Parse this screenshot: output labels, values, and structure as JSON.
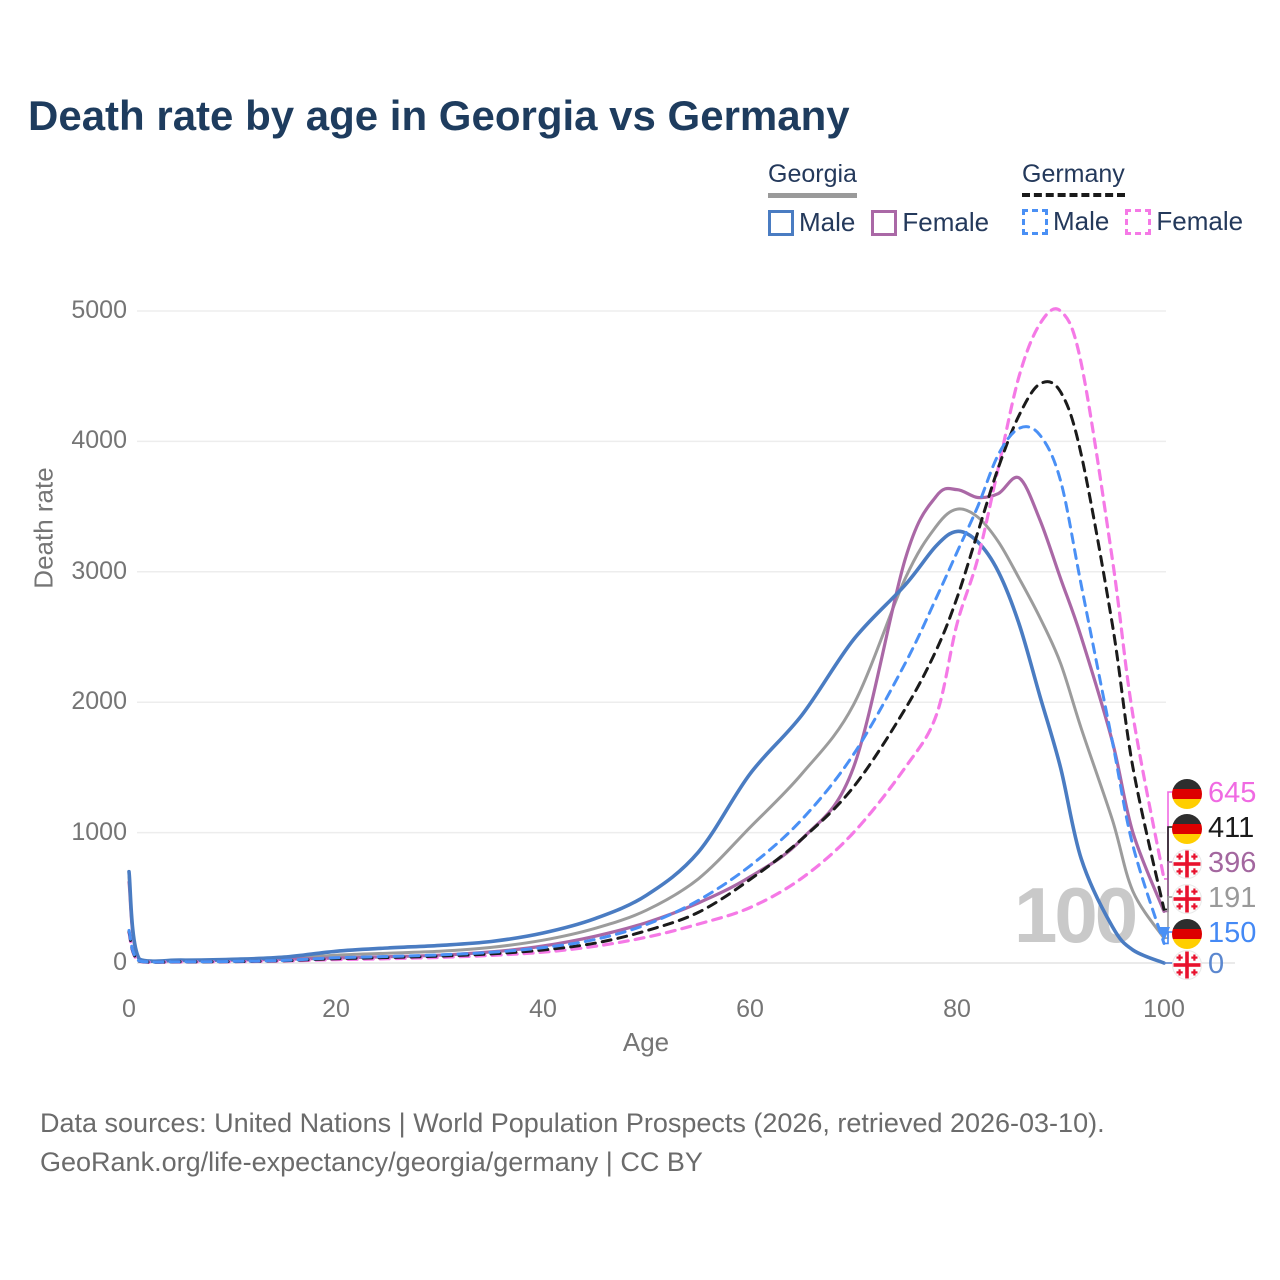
{
  "title": "Death rate by age in Georgia vs Germany",
  "watermark_highlight_age": "100",
  "legend": {
    "georgia": {
      "label": "Georgia",
      "male": "Male",
      "female": "Female"
    },
    "germany": {
      "label": "Germany",
      "male": "Male",
      "female": "Female"
    }
  },
  "axes": {
    "y_title": "Death rate",
    "x_title": "Age",
    "y_ticks": [
      0,
      1000,
      2000,
      3000,
      4000,
      5000
    ],
    "x_ticks": [
      0,
      20,
      40,
      60,
      80,
      100
    ]
  },
  "colors": {
    "georgia_male": "#4a7cc2",
    "georgia_female": "#aa68a6",
    "georgia_total": "#9c9c9c",
    "germany_male": "#4a90f5",
    "germany_female": "#f579e6",
    "germany_total": "#1b1b1b",
    "grid": "#ededed",
    "baseline": "#e4e4e4",
    "title_text": "#1e3c5e",
    "axis_text": "#757575",
    "watermark": "#c9c9c9"
  },
  "end_labels": [
    {
      "label": "645",
      "end_value": 645,
      "country": "germany",
      "color": "#f06ae2",
      "series": "Germany Female"
    },
    {
      "label": "411",
      "end_value": 411,
      "country": "germany",
      "color": "#1a1a1a",
      "series": "Germany Both sexes"
    },
    {
      "label": "396",
      "end_value": 396,
      "country": "georgia",
      "color": "#a3679f",
      "series": "Georgia Female"
    },
    {
      "label": "191",
      "end_value": 191,
      "country": "georgia",
      "color": "#9a9a9a",
      "series": "Georgia Both sexes"
    },
    {
      "label": "150",
      "end_value": 150,
      "country": "germany",
      "color": "#4489f5",
      "series": "Germany Male"
    },
    {
      "label": "0",
      "end_value": 0,
      "country": "georgia",
      "color": "#5b87cf",
      "series": "Georgia Male"
    }
  ],
  "chart_data": {
    "type": "line",
    "title": "Death rate by age in Georgia vs Germany",
    "xlabel": "Age",
    "ylabel": "Death rate",
    "xlim": [
      0,
      105
    ],
    "ylim": [
      0,
      5000
    ],
    "grid": "horizontal",
    "legend_position": "top-right",
    "highlighted_x": 100,
    "x": [
      0,
      1,
      5,
      10,
      15,
      20,
      25,
      30,
      35,
      40,
      45,
      50,
      55,
      60,
      65,
      70,
      75,
      78,
      80,
      82,
      84,
      86,
      88,
      90,
      92,
      95,
      97,
      100
    ],
    "series": [
      {
        "id": "georgia-total",
        "name": "Georgia Both sexes",
        "country": "Georgia",
        "sex": "total",
        "line_style": "solid",
        "color": "#9c9c9c",
        "width": 3,
        "end_value": 191,
        "values": [
          660,
          28,
          20,
          25,
          35,
          60,
          75,
          90,
          120,
          175,
          265,
          405,
          645,
          1040,
          1450,
          1980,
          2950,
          3350,
          3480,
          3420,
          3230,
          2950,
          2650,
          2300,
          1800,
          1100,
          550,
          191
        ]
      },
      {
        "id": "georgia-female",
        "name": "Georgia Female",
        "country": "Georgia",
        "sex": "female",
        "line_style": "solid",
        "color": "#aa68a6",
        "width": 3.2,
        "end_value": 396,
        "values": [
          620,
          26,
          18,
          22,
          28,
          38,
          48,
          60,
          85,
          130,
          205,
          310,
          460,
          660,
          950,
          1500,
          3100,
          3580,
          3630,
          3570,
          3600,
          3720,
          3400,
          2950,
          2500,
          1700,
          1000,
          396
        ]
      },
      {
        "id": "georgia-male",
        "name": "Georgia Male",
        "country": "Georgia",
        "sex": "male",
        "line_style": "solid",
        "color": "#4a7cc2",
        "width": 3.6,
        "end_value": 0,
        "values": [
          700,
          30,
          22,
          28,
          45,
          90,
          115,
          135,
          165,
          230,
          340,
          520,
          850,
          1450,
          1900,
          2480,
          2900,
          3200,
          3310,
          3230,
          3000,
          2600,
          2050,
          1500,
          800,
          280,
          100,
          0
        ]
      },
      {
        "id": "germany-female",
        "name": "Germany Female",
        "country": "Germany",
        "sex": "female",
        "line_style": "dashed",
        "color": "#f579e6",
        "width": 3.2,
        "end_value": 645,
        "values": [
          230,
          12,
          8,
          10,
          15,
          26,
          33,
          43,
          58,
          83,
          128,
          198,
          298,
          425,
          650,
          1000,
          1500,
          1900,
          2600,
          3100,
          3800,
          4500,
          4900,
          5000,
          4600,
          3100,
          1900,
          645
        ]
      },
      {
        "id": "germany-total",
        "name": "Germany Both sexes",
        "country": "Germany",
        "sex": "total",
        "line_style": "dashed",
        "color": "#1b1b1b",
        "width": 3,
        "end_value": 411,
        "values": [
          240,
          13,
          9,
          11,
          18,
          33,
          42,
          53,
          70,
          100,
          152,
          248,
          388,
          640,
          950,
          1350,
          1950,
          2400,
          2800,
          3300,
          3800,
          4200,
          4440,
          4380,
          3900,
          2600,
          1500,
          411
        ]
      },
      {
        "id": "germany-male",
        "name": "Germany Male",
        "country": "Germany",
        "sex": "male",
        "line_style": "dashed",
        "color": "#4a90f5",
        "width": 3,
        "end_value": 150,
        "values": [
          250,
          15,
          10,
          12,
          20,
          40,
          50,
          62,
          82,
          118,
          180,
          295,
          480,
          745,
          1100,
          1600,
          2300,
          2800,
          3150,
          3500,
          3900,
          4100,
          4050,
          3700,
          2900,
          1700,
          900,
          150
        ]
      }
    ]
  },
  "source": {
    "line1": "Data sources: United Nations | World Population Prospects (2026, retrieved 2026-03-10).",
    "line2": "GeoRank.org/life-expectancy/georgia/germany | CC BY"
  }
}
